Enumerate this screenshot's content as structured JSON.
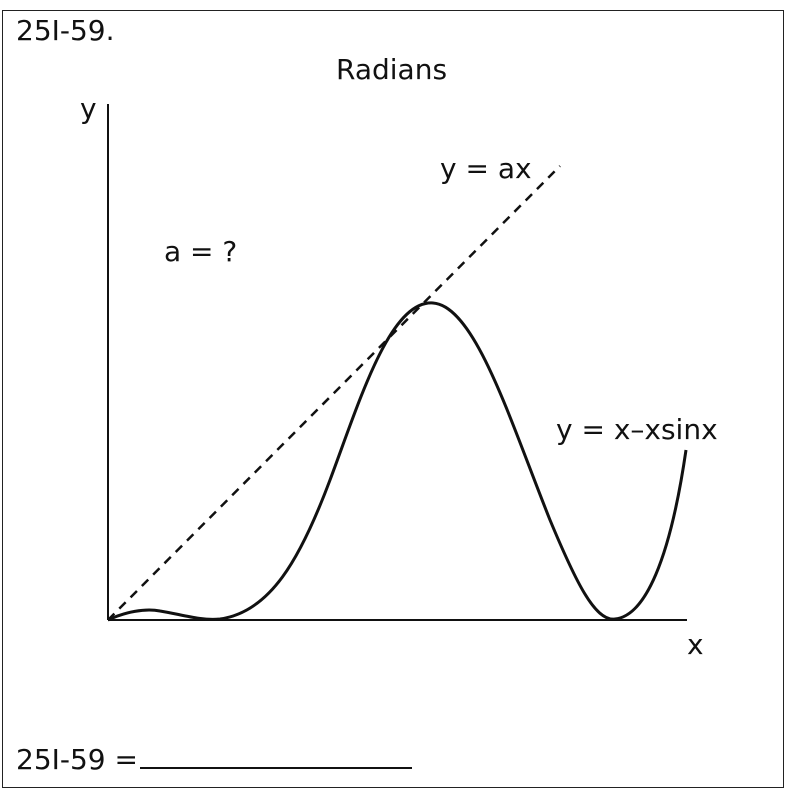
{
  "problem": {
    "id": "25I-59.",
    "answer_label": "25I-59 ="
  },
  "diagram": {
    "title": "Radians",
    "y_axis_label": "y",
    "x_axis_label": "x",
    "unknown_label": "a = ?",
    "line_label": "y = ax",
    "curve_label": "y = x–xsinx"
  }
}
